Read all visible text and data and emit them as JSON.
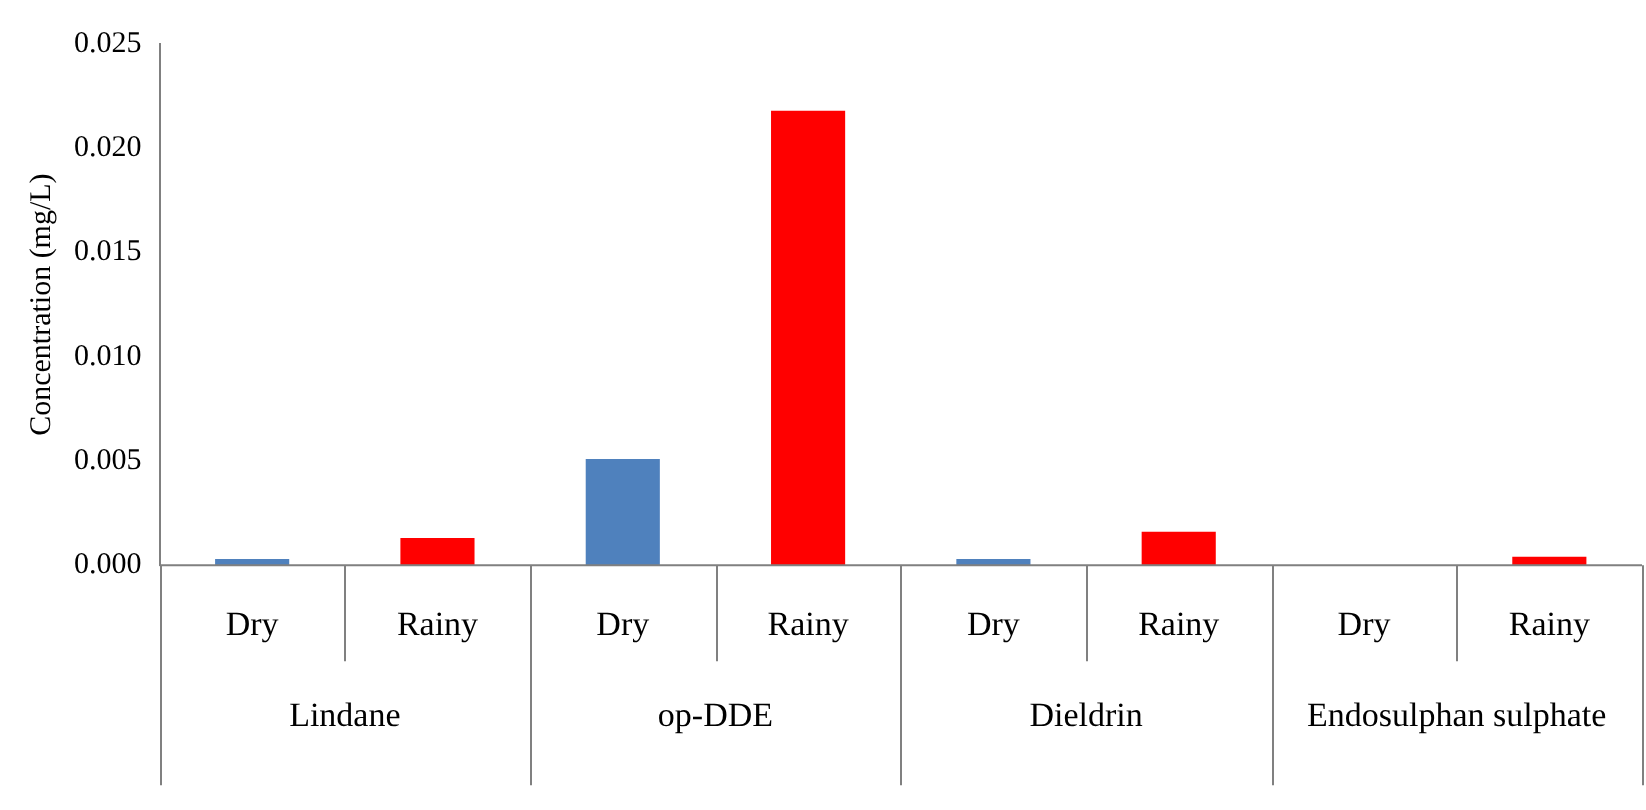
{
  "chart_data": {
    "type": "bar",
    "ylabel": "Concentration (mg/L)",
    "categories": [
      "Dry",
      "Rainy",
      "Dry",
      "Rainy",
      "Dry",
      "Rainy",
      "Dry",
      "Rainy"
    ],
    "values": [
      0.0003,
      0.0013,
      0.0051,
      0.0218,
      0.0003,
      0.0016,
      0,
      0.0004
    ],
    "colors": [
      "#4f81bd",
      "#ff0000",
      "#4f81bd",
      "#ff0000",
      "#4f81bd",
      "#ff0000",
      "#4f81bd",
      "#ff0000"
    ],
    "annotations": [
      "Lindane",
      "op-DDE",
      "Dieldrin",
      "Endosulphan sulphate"
    ],
    "ylim": [
      0,
      0.025
    ],
    "yticks": [
      {
        "value": 0,
        "label": "0.000"
      },
      {
        "value": 0.005,
        "label": "0.005"
      },
      {
        "value": 0.01,
        "label": "0.010"
      },
      {
        "value": 0.015,
        "label": "0.015"
      },
      {
        "value": 0.02,
        "label": "0.020"
      },
      {
        "value": 0.025,
        "label": "0.025"
      }
    ],
    "grid": false,
    "legend": false
  }
}
